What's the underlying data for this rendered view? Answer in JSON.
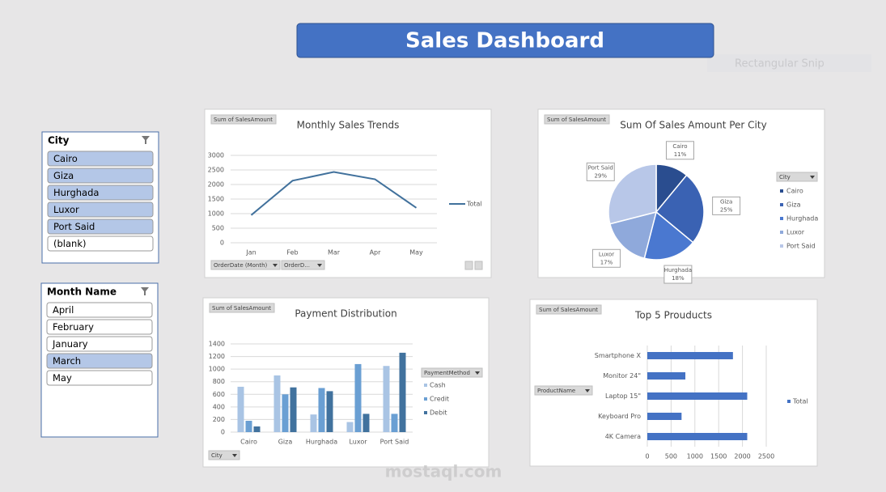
{
  "header": {
    "title": "Sales Dashboard"
  },
  "snip_label": "Rectangular Snip",
  "watermark": "mostaql.com",
  "slicers": [
    {
      "title": "City",
      "items": [
        {
          "label": "Cairo",
          "selected": true
        },
        {
          "label": "Giza",
          "selected": true
        },
        {
          "label": "Hurghada",
          "selected": true
        },
        {
          "label": "Luxor",
          "selected": true
        },
        {
          "label": "Port Said",
          "selected": true
        },
        {
          "label": "(blank)",
          "selected": false
        }
      ]
    },
    {
      "title": "Month Name",
      "items": [
        {
          "label": "April",
          "selected": false
        },
        {
          "label": "February",
          "selected": false
        },
        {
          "label": "January",
          "selected": false
        },
        {
          "label": "March",
          "selected": true
        },
        {
          "label": "May",
          "selected": false
        }
      ]
    }
  ],
  "chart_data": [
    {
      "type": "line",
      "title": "Monthly Sales Trends",
      "field_buttons": [
        "Sum of SalesAmount",
        "OrderDate (Month)",
        "OrderD..."
      ],
      "categories": [
        "Jan",
        "Feb",
        "Mar",
        "Apr",
        "May"
      ],
      "series": [
        {
          "name": "Total",
          "color": "#41719c",
          "values": [
            950,
            2130,
            2430,
            2180,
            1200
          ]
        }
      ],
      "ylim": [
        0,
        3000
      ],
      "yticks": [
        0,
        500,
        1000,
        1500,
        2000,
        2500,
        3000
      ],
      "grid": true,
      "legend": "right"
    },
    {
      "type": "pie",
      "title": "Sum Of Sales Amount Per City",
      "field_buttons": [
        "Sum of SalesAmount"
      ],
      "legend_title": "City",
      "categories": [
        "Cairo",
        "Giza",
        "Hurghada",
        "Luxor",
        "Port Said"
      ],
      "values": [
        11,
        25,
        18,
        17,
        29
      ],
      "value_labels": [
        "11%",
        "25%",
        "18%",
        "17%",
        "29%"
      ],
      "colors": [
        "#2a4d8f",
        "#3a62b3",
        "#4a78d0",
        "#8fa9db",
        "#b8c7e8"
      ],
      "legend": "right"
    },
    {
      "type": "bar",
      "title": "Payment Distribution",
      "field_buttons": [
        "Sum of SalesAmount",
        "City"
      ],
      "legend_title": "PaymentMethod",
      "categories": [
        "Cairo",
        "Giza",
        "Hurghada",
        "Luxor",
        "Port Said"
      ],
      "series": [
        {
          "name": "Cash",
          "color": "#a9c4e4",
          "values": [
            720,
            900,
            280,
            160,
            1050
          ]
        },
        {
          "name": "Credit",
          "color": "#6a9fd3",
          "values": [
            180,
            600,
            700,
            1080,
            290
          ]
        },
        {
          "name": "Debit",
          "color": "#41729e",
          "values": [
            90,
            710,
            650,
            290,
            1260
          ]
        }
      ],
      "ylim": [
        0,
        1400
      ],
      "yticks": [
        0,
        200,
        400,
        600,
        800,
        1000,
        1200,
        1400
      ],
      "grid": true,
      "legend": "right"
    },
    {
      "type": "barh",
      "title": "Top 5 Prouducts",
      "field_buttons": [
        "Sum of SalesAmount",
        "ProductName"
      ],
      "categories": [
        "Smartphone X",
        "Monitor 24\"",
        "Laptop 15\"",
        "Keyboard Pro",
        "4K Camera"
      ],
      "series": [
        {
          "name": "Total",
          "color": "#4472c4",
          "values": [
            1800,
            800,
            2100,
            720,
            2100
          ]
        }
      ],
      "xlim": [
        0,
        2500
      ],
      "xticks": [
        0,
        500,
        1000,
        1500,
        2000,
        2500
      ],
      "grid": true,
      "legend": "right"
    }
  ]
}
